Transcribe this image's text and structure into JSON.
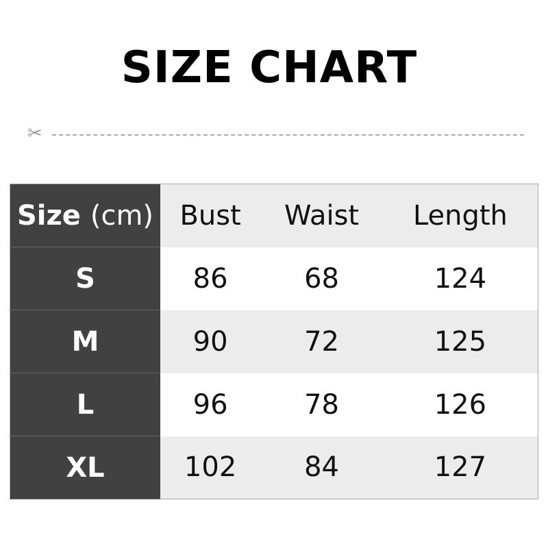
{
  "title": "SIZE CHART",
  "header": {
    "size": "Size",
    "unit": "(cm)",
    "cols": [
      "Bust",
      "Waist",
      "Length"
    ]
  },
  "rows": [
    {
      "size": "S",
      "values": [
        "86",
        "68",
        "124"
      ]
    },
    {
      "size": "M",
      "values": [
        "90",
        "72",
        "125"
      ]
    },
    {
      "size": "L",
      "values": [
        "96",
        "78",
        "126"
      ]
    },
    {
      "size": "XL",
      "values": [
        "102",
        "84",
        "127"
      ]
    }
  ]
}
